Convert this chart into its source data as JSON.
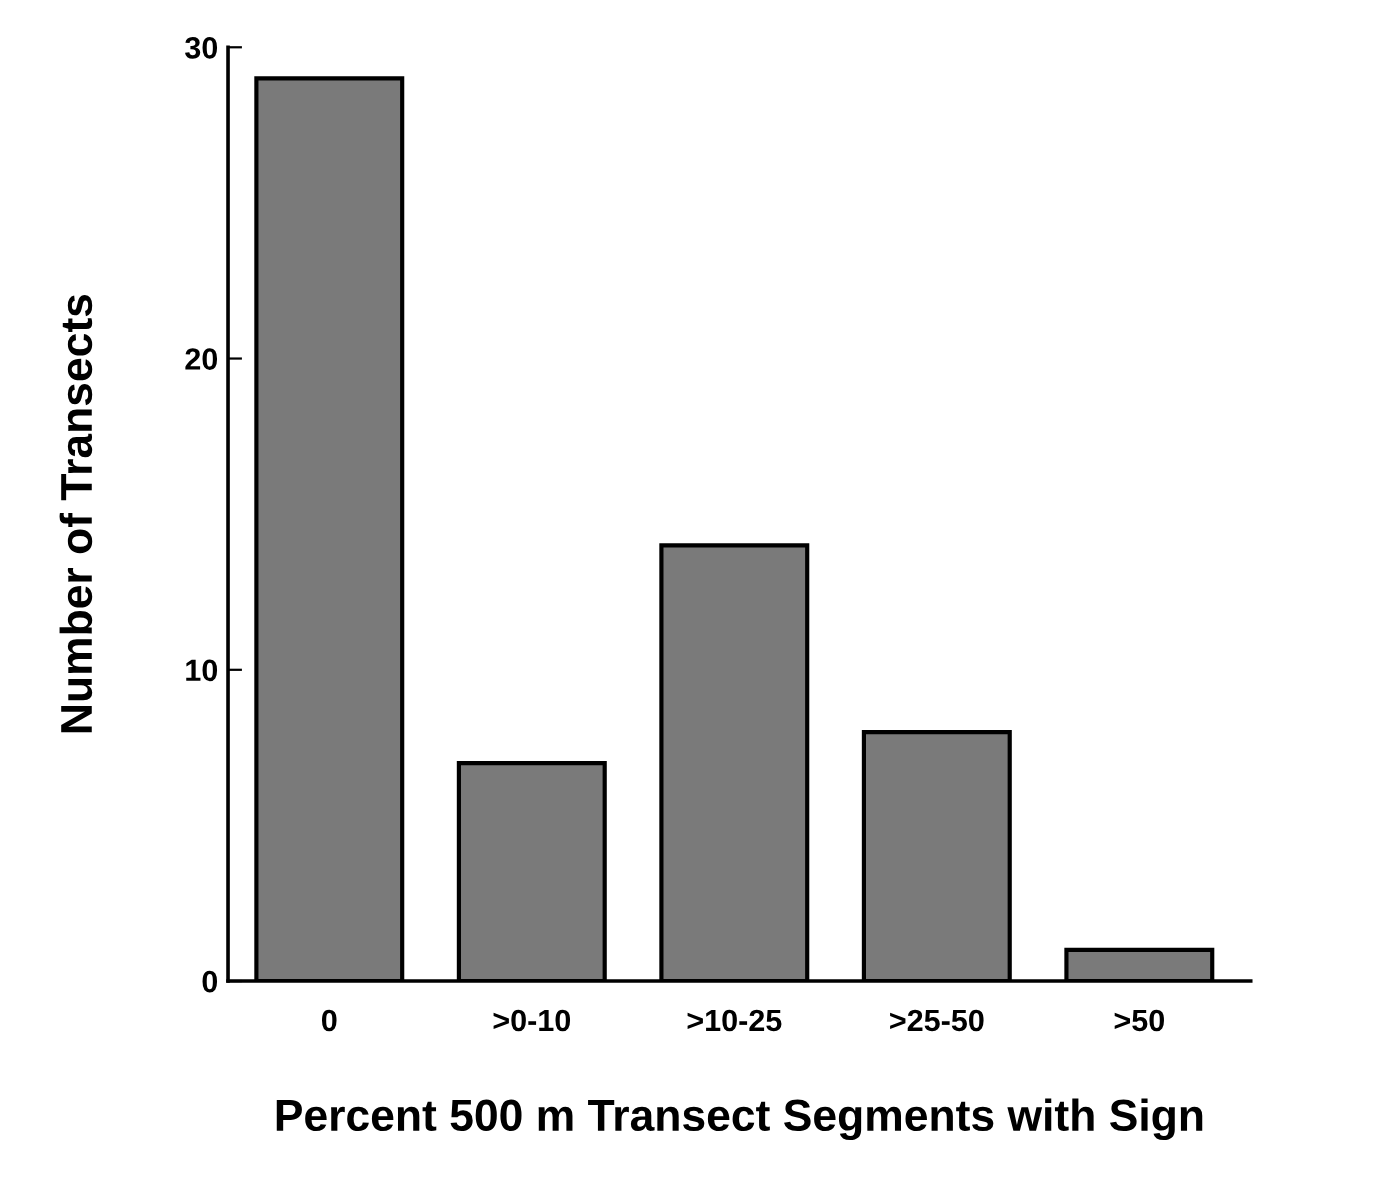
{
  "chart_data": {
    "type": "bar",
    "xlabel": "Percent 500 m Transect Segments with Sign",
    "ylabel": "Number of Transects",
    "categories": [
      "0",
      ">0-10",
      ">10-25",
      ">25-50",
      ">50"
    ],
    "values": [
      29,
      7,
      14,
      8,
      1
    ],
    "color": "#7a7a7a",
    "ylim": [
      0,
      30
    ],
    "yticks": [
      0,
      10,
      20,
      30
    ],
    "grid": false,
    "legend": false
  }
}
